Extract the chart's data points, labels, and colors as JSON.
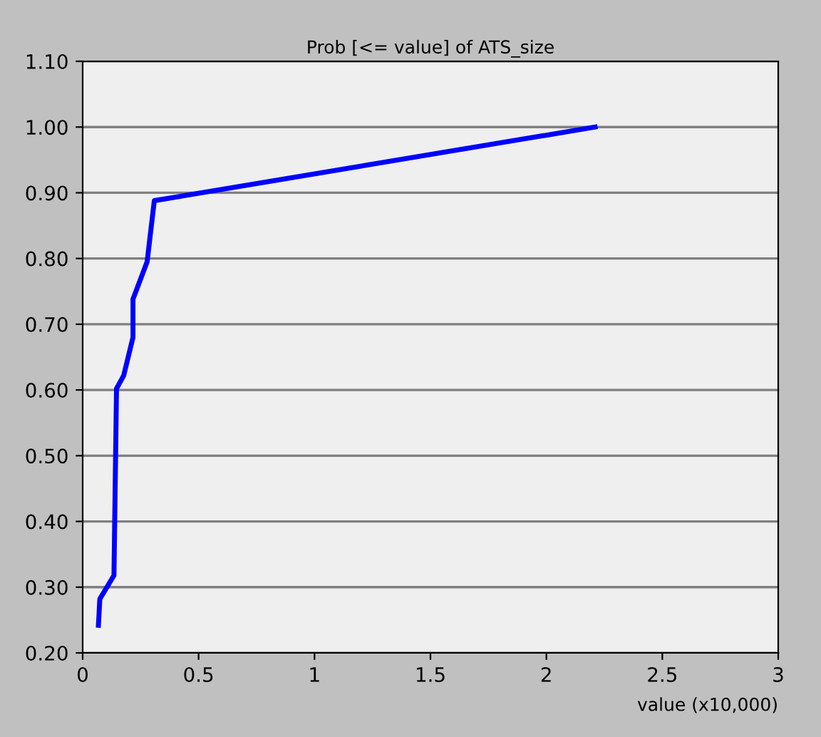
{
  "chart_data": {
    "type": "line",
    "title": "Prob [<= value] of ATS_size",
    "xlabel": "value (x10,000)",
    "series": [
      {
        "color": "#0000ff",
        "x": [
          0.068,
          0.074,
          0.135,
          0.146,
          0.177,
          0.217,
          0.217,
          0.278,
          0.309,
          2.21
        ],
        "values": [
          0.242,
          0.282,
          0.318,
          0.602,
          0.622,
          0.68,
          0.738,
          0.795,
          0.888,
          1.0
        ]
      }
    ],
    "xlim": [
      0,
      3
    ],
    "xticks": [
      0,
      0.5,
      1,
      1.5,
      2,
      2.5,
      3
    ],
    "ylim": [
      0.2,
      1.1
    ],
    "yticks": [
      {
        "value": 0.2,
        "label": "0.20"
      },
      {
        "value": 0.3,
        "label": "0.30"
      },
      {
        "value": 0.4,
        "label": "0.40"
      },
      {
        "value": 0.5,
        "label": "0.50"
      },
      {
        "value": 0.6,
        "label": "0.60"
      },
      {
        "value": 0.7,
        "label": "0.70"
      },
      {
        "value": 0.8,
        "label": "0.80"
      },
      {
        "value": 0.9,
        "label": "0.90"
      },
      {
        "value": 1.0,
        "label": "1.00"
      },
      {
        "value": 1.1,
        "label": "1.10"
      }
    ],
    "grid": "y",
    "line_style": "solid",
    "marker": "none"
  }
}
